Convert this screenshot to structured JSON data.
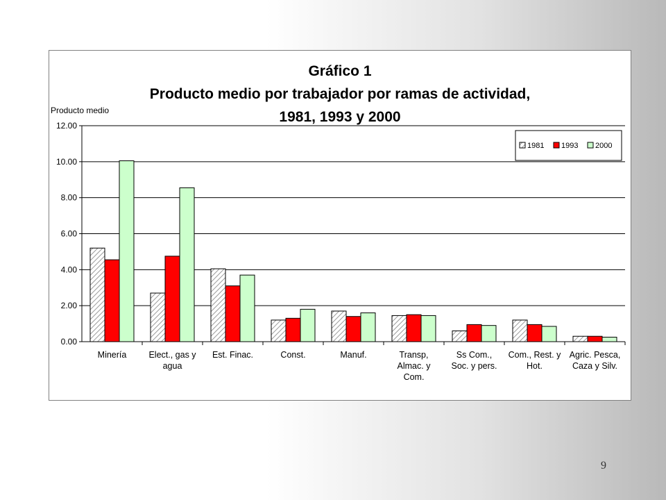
{
  "slide": {
    "number": "9"
  },
  "colors": {
    "c1981": "#ffffff",
    "c1993": "#ff0000",
    "c2000": "#ccffcc",
    "hatch": "#9a9a9a"
  },
  "chart_data": {
    "type": "bar",
    "title": "Gráfico 1",
    "subtitle": "Producto medio por trabajador por ramas de actividad,",
    "subtitle2": "1981, 1993 y 2000",
    "ylabel": "Producto medio",
    "xlabel": "",
    "ylim": [
      0,
      12
    ],
    "yticks": [
      "0.00",
      "2.00",
      "4.00",
      "6.00",
      "8.00",
      "10.00",
      "12.00"
    ],
    "grid": true,
    "legend_position": "top-right",
    "categories": [
      [
        "Minería"
      ],
      [
        "Elect., gas y",
        "agua"
      ],
      [
        "Est. Finac."
      ],
      [
        "Const."
      ],
      [
        "Manuf."
      ],
      [
        "Transp,",
        "Almac. y",
        "Com."
      ],
      [
        "Ss Com.,",
        "Soc. y pers."
      ],
      [
        "Com., Rest. y",
        "Hot."
      ],
      [
        "Agric. Pesca,",
        "Caza y Silv."
      ]
    ],
    "series": [
      {
        "name": "1981",
        "values": [
          5.2,
          2.7,
          4.05,
          1.2,
          1.7,
          1.45,
          0.6,
          1.2,
          0.3
        ]
      },
      {
        "name": "1993",
        "values": [
          4.55,
          4.75,
          3.1,
          1.3,
          1.4,
          1.5,
          0.95,
          0.95,
          0.3
        ]
      },
      {
        "name": "2000",
        "values": [
          10.05,
          8.55,
          3.7,
          1.8,
          1.6,
          1.45,
          0.9,
          0.85,
          0.25
        ]
      }
    ]
  }
}
